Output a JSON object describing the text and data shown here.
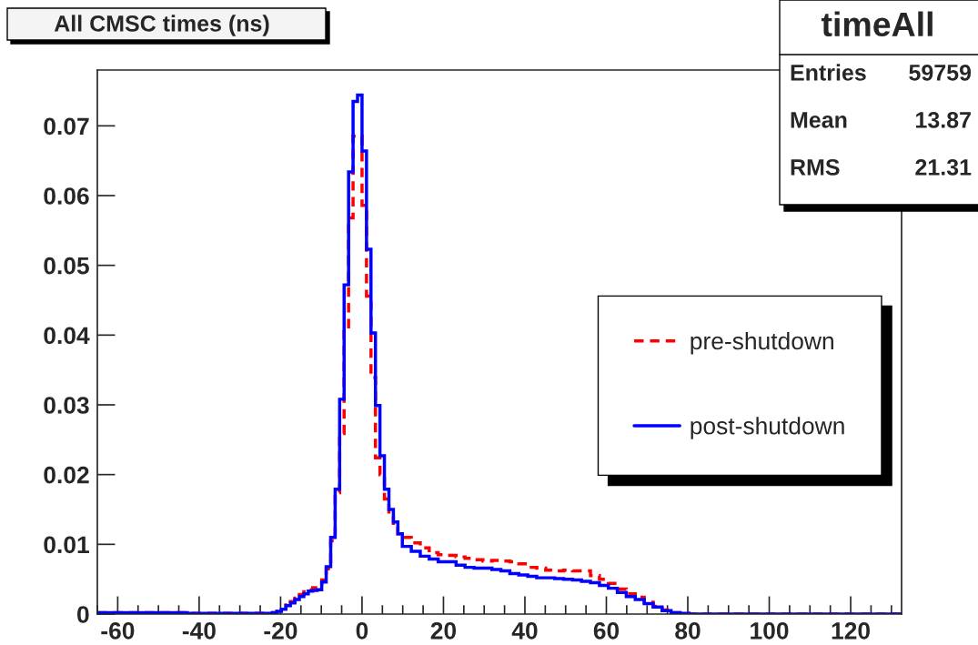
{
  "chart_data": {
    "type": "histogram",
    "title": "All CMSC times (ns)",
    "bins": [
      -65,
      -42.9,
      -22.0,
      -20.9,
      -19.8,
      -18.7,
      -17.6,
      -16.5,
      -15.4,
      -14.3,
      -13.2,
      -12.1,
      -11.0,
      -9.9,
      -8.8,
      -7.7,
      -6.6,
      -5.5,
      -4.4,
      -3.3,
      -2.2,
      -1.1,
      0,
      1.1,
      2.2,
      3.3,
      4.4,
      5.5,
      6.6,
      7.7,
      8.8,
      9.9,
      12.1,
      14.3,
      16.5,
      18.7,
      20.9,
      23.1,
      25.3,
      27.5,
      29.7,
      31.9,
      34.1,
      36.3,
      38.5,
      40.7,
      42.9,
      45.1,
      47.3,
      49.5,
      51.7,
      53.9,
      56.1,
      58.3,
      60.5,
      62.7,
      64.9,
      67.1,
      69.3,
      71.5,
      73.7,
      75.9,
      78.1,
      80.3,
      132.5
    ],
    "series": [
      {
        "name": "pre-shutdown",
        "color": "#ff0000",
        "line_style": "dashed",
        "values": [
          0.0002,
          0.0001,
          0.0002,
          0.0004,
          0.0007,
          0.0013,
          0.0018,
          0.0023,
          0.0028,
          0.0032,
          0.0035,
          0.0038,
          0.004,
          0.0049,
          0.0065,
          0.0105,
          0.0174,
          0.0259,
          0.0405,
          0.0568,
          0.0685,
          0.0685,
          0.0586,
          0.0456,
          0.0339,
          0.0224,
          0.02,
          0.0165,
          0.014,
          0.0125,
          0.0115,
          0.011,
          0.0102,
          0.0095,
          0.0088,
          0.0085,
          0.0084,
          0.0082,
          0.008,
          0.0078,
          0.0076,
          0.0077,
          0.0076,
          0.0075,
          0.0072,
          0.0067,
          0.0066,
          0.0063,
          0.0062,
          0.0063,
          0.0062,
          0.0062,
          0.0055,
          0.005,
          0.0044,
          0.0036,
          0.0029,
          0.0024,
          0.0017,
          0.0011,
          0.0006,
          0.0002,
          0.0001,
          0
        ]
      },
      {
        "name": "post-shutdown",
        "color": "#0000ff",
        "line_style": "solid",
        "values": [
          0.0002,
          0.0001,
          0.0002,
          0.0004,
          0.0007,
          0.0012,
          0.0016,
          0.0021,
          0.0025,
          0.0029,
          0.0033,
          0.0034,
          0.0035,
          0.0046,
          0.0068,
          0.011,
          0.0179,
          0.0308,
          0.0472,
          0.0634,
          0.0735,
          0.0744,
          0.0664,
          0.0523,
          0.0403,
          0.0299,
          0.0227,
          0.0179,
          0.015,
          0.0132,
          0.0115,
          0.0097,
          0.009,
          0.0083,
          0.0079,
          0.0075,
          0.0075,
          0.007,
          0.0067,
          0.0066,
          0.0066,
          0.0064,
          0.0062,
          0.0058,
          0.0056,
          0.0054,
          0.0052,
          0.0052,
          0.0051,
          0.005,
          0.0049,
          0.0047,
          0.0045,
          0.0041,
          0.0037,
          0.0031,
          0.0025,
          0.0021,
          0.0015,
          0.001,
          0.0005,
          0.0002,
          0.0001,
          0
        ]
      }
    ],
    "xlim": [
      -65,
      132.5
    ],
    "xticks": [
      -60,
      -40,
      -20,
      0,
      20,
      40,
      60,
      80,
      100,
      120
    ],
    "ylim": [
      0,
      0.078
    ],
    "yticks": [
      0,
      0.01,
      0.02,
      0.03,
      0.04,
      0.05,
      0.06,
      0.07
    ],
    "legend": "right",
    "grid": false,
    "annotations": [
      "timeAll",
      "Entries",
      "59759",
      "Mean",
      "13.87",
      "RMS",
      "21.31"
    ]
  }
}
